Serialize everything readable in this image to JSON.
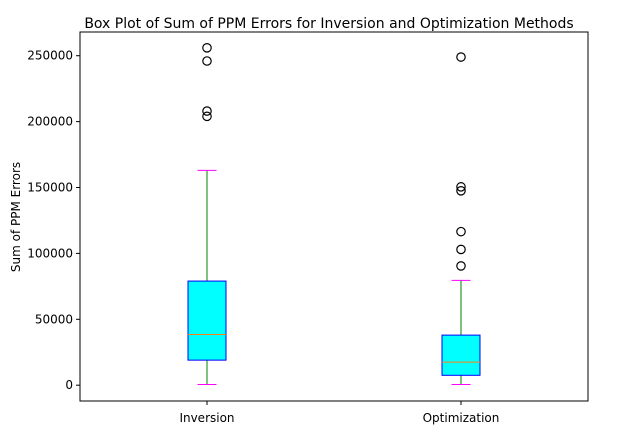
{
  "chart_data": {
    "type": "boxplot",
    "title": "Box Plot of Sum of PPM Errors for Inversion and Optimization Methods",
    "ylabel": "Sum of PPM Errors",
    "xlabel": "",
    "ylim": [
      -12000,
      268000
    ],
    "yticks": [
      0,
      50000,
      100000,
      150000,
      200000,
      250000
    ],
    "ytick_labels": [
      "0",
      "50000",
      "100000",
      "150000",
      "200000",
      "250000"
    ],
    "grid": false,
    "categories": [
      "Inversion",
      "Optimization"
    ],
    "boxes": [
      {
        "name": "Inversion",
        "whisker_low": 500,
        "q1": 19000,
        "median": 38500,
        "q3": 79000,
        "whisker_high": 163000,
        "outliers": [
          204000,
          208000,
          246000,
          256000
        ]
      },
      {
        "name": "Optimization",
        "whisker_low": 500,
        "q1": 7500,
        "median": 17500,
        "q3": 38000,
        "whisker_high": 79500,
        "outliers": [
          90500,
          103000,
          116500,
          147500,
          150500,
          249000
        ]
      }
    ],
    "colors": {
      "box_fill": "#00ffff",
      "box_edge": "#0000ff",
      "median": "#ff7f0e",
      "whisker": "#008000",
      "cap": "#ff00ff",
      "outlier_edge": "#000000"
    }
  }
}
